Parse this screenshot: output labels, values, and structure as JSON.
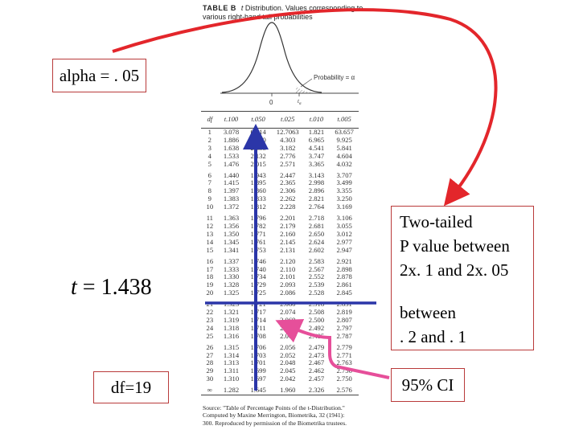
{
  "caption": {
    "label": "TABLE B",
    "var": "t",
    "text1": " Distribution. Values corresponding to",
    "text2": "various right-hand tail probabilities"
  },
  "figure": {
    "probability_label": "Probability = α",
    "zero_label": "0",
    "t_label": "t",
    "t_subscript": "α"
  },
  "table": {
    "headers": [
      "df",
      "t.100",
      "t.050",
      "t.025",
      "t.010",
      "t.005"
    ],
    "rows": [
      [
        "1",
        "3.078",
        "6.314",
        "12.7063",
        "1.821",
        "63.657"
      ],
      [
        "2",
        "1.886",
        "2.920",
        "4.303",
        "6.965",
        "9.925"
      ],
      [
        "3",
        "1.638",
        "2.353",
        "3.182",
        "4.541",
        "5.841"
      ],
      [
        "4",
        "1.533",
        "2.132",
        "2.776",
        "3.747",
        "4.604"
      ],
      [
        "5",
        "1.476",
        "2.015",
        "2.571",
        "3.365",
        "4.032"
      ],
      [
        "6",
        "1.440",
        "1.943",
        "2.447",
        "3.143",
        "3.707"
      ],
      [
        "7",
        "1.415",
        "1.895",
        "2.365",
        "2.998",
        "3.499"
      ],
      [
        "8",
        "1.397",
        "1.860",
        "2.306",
        "2.896",
        "3.355"
      ],
      [
        "9",
        "1.383",
        "1.833",
        "2.262",
        "2.821",
        "3.250"
      ],
      [
        "10",
        "1.372",
        "1.812",
        "2.228",
        "2.764",
        "3.169"
      ],
      [
        "11",
        "1.363",
        "1.796",
        "2.201",
        "2.718",
        "3.106"
      ],
      [
        "12",
        "1.356",
        "1.782",
        "2.179",
        "2.681",
        "3.055"
      ],
      [
        "13",
        "1.350",
        "1.771",
        "2.160",
        "2.650",
        "3.012"
      ],
      [
        "14",
        "1.345",
        "1.761",
        "2.145",
        "2.624",
        "2.977"
      ],
      [
        "15",
        "1.341",
        "1.753",
        "2.131",
        "2.602",
        "2.947"
      ],
      [
        "16",
        "1.337",
        "1.746",
        "2.120",
        "2.583",
        "2.921"
      ],
      [
        "17",
        "1.333",
        "1.740",
        "2.110",
        "2.567",
        "2.898"
      ],
      [
        "18",
        "1.330",
        "1.734",
        "2.101",
        "2.552",
        "2.878"
      ],
      [
        "19",
        "1.328",
        "1.729",
        "2.093",
        "2.539",
        "2.861"
      ],
      [
        "20",
        "1.325",
        "1.725",
        "2.086",
        "2.528",
        "2.845"
      ],
      [
        "21",
        "1.323",
        "1.721",
        "2.080",
        "2.518",
        "2.831"
      ],
      [
        "22",
        "1.321",
        "1.717",
        "2.074",
        "2.508",
        "2.819"
      ],
      [
        "23",
        "1.319",
        "1.714",
        "2.069",
        "2.500",
        "2.807"
      ],
      [
        "24",
        "1.318",
        "1.711",
        "2.064",
        "2.492",
        "2.797"
      ],
      [
        "25",
        "1.316",
        "1.708",
        "2.060",
        "2.485",
        "2.787"
      ],
      [
        "26",
        "1.315",
        "1.706",
        "2.056",
        "2.479",
        "2.779"
      ],
      [
        "27",
        "1.314",
        "1.703",
        "2.052",
        "2.473",
        "2.771"
      ],
      [
        "28",
        "1.313",
        "1.701",
        "2.048",
        "2.467",
        "2.763"
      ],
      [
        "29",
        "1.311",
        "1.699",
        "2.045",
        "2.462",
        "2.756"
      ],
      [
        "30",
        "1.310",
        "1.697",
        "2.042",
        "2.457",
        "2.750"
      ],
      [
        "∞",
        "1.282",
        "1.645",
        "1.960",
        "2.326",
        "2.576"
      ]
    ]
  },
  "source": {
    "line1": "Source: \"Table of Percentage Points of the t-Distribution.\"",
    "line2": "Computed by Maxine Merrington, Biometrika, 32 (1941):",
    "line3": "300. Reproduced by permission of the Biometrika trustees."
  },
  "annotations": {
    "alpha": "alpha = . 05",
    "t_prefix": "t",
    "t_value": "= 1.438",
    "df": "df=19",
    "pvalue_line1": "Two-tailed",
    "pvalue_line2": "P value between",
    "pvalue_line3": "2x. 1 and 2x. 05",
    "between_line1": "between",
    "between_line2": ". 2 and . 1",
    "ci": "95% CI"
  },
  "colors": {
    "red_arrow": "#e3262b",
    "blue_marker": "#2b36a8",
    "pink_arrow": "#e64f9a",
    "box_border": "#b93a3a"
  }
}
